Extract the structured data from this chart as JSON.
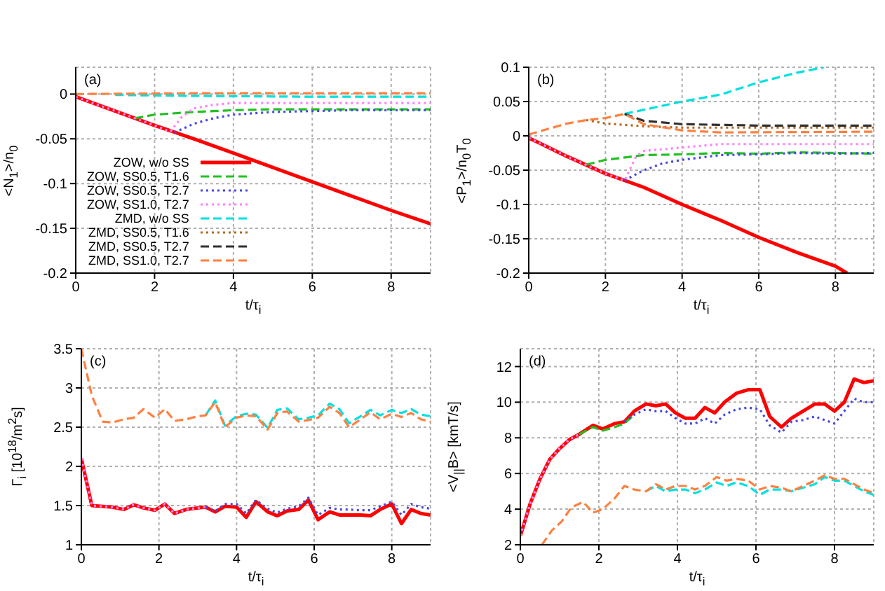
{
  "chart_data": [
    {
      "type": "line",
      "xlabel": "t/τ$_{i}$",
      "ylabel": "<N$_{1}$>/n$_{0}$",
      "xlim": [
        0,
        9
      ],
      "xticks": [
        0,
        2,
        4,
        6,
        8
      ],
      "ylim": [
        -0.2,
        0.03
      ],
      "yticks": [
        0,
        -0.05,
        -0.1,
        -0.15,
        -0.2
      ],
      "grid": true,
      "legend": "bottom left",
      "marker": "none",
      "annotations": [
        "(a)"
      ],
      "series": [
        {
          "name": "ZOW, w/o SS",
          "color": "#ff0000",
          "line_style": "solid",
          "x": [
            0,
            1,
            2,
            3,
            4,
            5,
            6,
            7,
            8,
            9
          ],
          "values": [
            -0.003,
            -0.019,
            -0.035,
            -0.05,
            -0.066,
            -0.082,
            -0.098,
            -0.114,
            -0.13,
            -0.145
          ]
        },
        {
          "name": "ZOW, SS0.5, T1.6",
          "color": "#22c022",
          "line_style": "dashed",
          "x": [
            1.5,
            2,
            3,
            4,
            5,
            6,
            7,
            8,
            9
          ],
          "values": [
            -0.027,
            -0.023,
            -0.02,
            -0.018,
            -0.017,
            -0.017,
            -0.017,
            -0.017,
            -0.017
          ]
        },
        {
          "name": "ZOW, SS0.5, T2.7",
          "color": "#4848e0",
          "line_style": "dotted",
          "x": [
            2.5,
            3,
            3.5,
            4,
            5,
            6,
            7,
            8,
            9
          ],
          "values": [
            -0.043,
            -0.033,
            -0.027,
            -0.023,
            -0.02,
            -0.019,
            -0.018,
            -0.018,
            -0.018
          ]
        },
        {
          "name": "ZOW, SS1.0, T2.7",
          "color": "#ff80ff",
          "line_style": "dotted",
          "x": [
            0,
            1,
            2,
            2.4,
            2.7,
            3,
            3.5,
            4,
            5,
            6,
            7,
            8,
            9
          ],
          "values": [
            -0.003,
            -0.019,
            -0.035,
            -0.042,
            -0.025,
            -0.016,
            -0.012,
            -0.01,
            -0.01,
            -0.01,
            -0.01,
            -0.01,
            -0.01
          ]
        },
        {
          "name": "ZMD, w/o SS",
          "color": "#00e0e0",
          "line_style": "dashed",
          "x": [
            1,
            3,
            6,
            9
          ],
          "values": [
            -0.001,
            -0.002,
            -0.003,
            -0.003
          ]
        },
        {
          "name": "ZMD, SS0.5, T1.6",
          "color": "#b06820",
          "line_style": "dotted"
        },
        {
          "name": "ZMD, SS0.5, T2.7",
          "color": "#303030",
          "line_style": "dashed"
        },
        {
          "name": "ZMD, SS1.0, T2.7",
          "color": "#ff8040",
          "line_style": "dashed",
          "x": [
            0,
            3,
            6,
            9
          ],
          "values": [
            0,
            0.001,
            0.001,
            0.001
          ]
        }
      ]
    },
    {
      "type": "line",
      "xlabel": "t/τ$_{i}$",
      "ylabel": "<P$_{1}$>/n$_{0}$T$_{0}$",
      "xlim": [
        0,
        9
      ],
      "xticks": [
        0,
        2,
        4,
        6,
        8
      ],
      "ylim": [
        -0.2,
        0.1
      ],
      "yticks": [
        -0.2,
        -0.15,
        -0.1,
        -0.05,
        0,
        0.05,
        0.1
      ],
      "grid": true,
      "marker": "none",
      "annotations": [
        "(b)"
      ],
      "series": [
        {
          "color": "#ff0000",
          "line_style": "solid",
          "x": [
            0,
            1,
            2,
            3,
            4,
            5,
            6,
            7,
            8,
            8.3
          ],
          "values": [
            -0.003,
            -0.03,
            -0.055,
            -0.075,
            -0.1,
            -0.123,
            -0.148,
            -0.17,
            -0.19,
            -0.2
          ]
        },
        {
          "color": "#22c022",
          "line_style": "dashed",
          "x": [
            1.5,
            2,
            3,
            4,
            5,
            6,
            7,
            8,
            9
          ],
          "values": [
            -0.042,
            -0.035,
            -0.028,
            -0.027,
            -0.025,
            -0.026,
            -0.024,
            -0.025,
            -0.026
          ]
        },
        {
          "color": "#4848e0",
          "line_style": "dotted",
          "x": [
            2.5,
            3,
            3.5,
            4,
            5,
            6,
            7,
            8,
            9
          ],
          "values": [
            -0.065,
            -0.05,
            -0.04,
            -0.035,
            -0.028,
            -0.027,
            -0.025,
            -0.026,
            -0.025
          ]
        },
        {
          "color": "#ff80ff",
          "line_style": "dotted",
          "x": [
            0,
            1,
            2,
            2.5,
            2.8,
            3,
            4,
            5,
            6,
            7,
            8,
            9
          ],
          "values": [
            -0.003,
            -0.03,
            -0.055,
            -0.065,
            -0.03,
            -0.022,
            -0.017,
            -0.012,
            -0.012,
            -0.012,
            -0.012,
            -0.012
          ]
        },
        {
          "color": "#00e0e0",
          "line_style": "dashed",
          "x": [
            2.5,
            4,
            5,
            6,
            7,
            7.7
          ],
          "values": [
            0.032,
            0.05,
            0.06,
            0.078,
            0.092,
            0.1
          ]
        },
        {
          "color": "#b06820",
          "line_style": "dotted",
          "x": [
            1.5,
            2,
            3,
            4,
            6,
            9
          ],
          "values": [
            0.023,
            0.018,
            0.014,
            0.012,
            0.012,
            0.012
          ]
        },
        {
          "color": "#303030",
          "line_style": "dashed",
          "x": [
            2.5,
            3,
            4,
            6,
            9
          ],
          "values": [
            0.032,
            0.022,
            0.017,
            0.015,
            0.015
          ]
        },
        {
          "color": "#ff8040",
          "line_style": "dashed",
          "x": [
            0,
            1,
            1.5,
            2,
            2.5,
            3,
            4,
            5,
            9
          ],
          "values": [
            0.002,
            0.018,
            0.023,
            0.026,
            0.032,
            0.017,
            0.008,
            0.005,
            0.006
          ]
        }
      ]
    },
    {
      "type": "line",
      "xlabel": "t/τ$_{i}$",
      "ylabel": "Γ$_{i}$ [10$^{18}$/m$^{2}$s]",
      "xlim": [
        0,
        9
      ],
      "xticks": [
        0,
        2,
        4,
        6,
        8
      ],
      "ylim": [
        1,
        3.5
      ],
      "yticks": [
        1,
        1.5,
        2,
        2.5,
        3,
        3.5
      ],
      "grid": true,
      "marker": "none",
      "annotations": [
        "(c)"
      ],
      "series": [
        {
          "color": "#ff0000",
          "line_style": "solid",
          "x": [
            0,
            0.27,
            0.55,
            0.8,
            1.1,
            1.35,
            1.6,
            1.9,
            2.15,
            2.4,
            2.7,
            3.0,
            3.2,
            3.45,
            3.7,
            4.0,
            4.25,
            4.5,
            4.8,
            5.05,
            5.3,
            5.6,
            5.85,
            6.1,
            6.4,
            6.65,
            6.9,
            7.2,
            7.45,
            7.7,
            8.0,
            8.25,
            8.5,
            8.75,
            9
          ],
          "values": [
            2.1,
            1.5,
            1.49,
            1.48,
            1.45,
            1.51,
            1.47,
            1.44,
            1.52,
            1.4,
            1.45,
            1.47,
            1.48,
            1.42,
            1.49,
            1.48,
            1.35,
            1.55,
            1.42,
            1.37,
            1.43,
            1.45,
            1.57,
            1.32,
            1.42,
            1.38,
            1.38,
            1.38,
            1.37,
            1.45,
            1.52,
            1.27,
            1.45,
            1.4,
            1.38
          ]
        },
        {
          "color": "#4848e0",
          "line_style": "dotted",
          "x": [
            3.2,
            3.45,
            3.7,
            4.0,
            4.25,
            4.5,
            4.8,
            5.05,
            5.3,
            5.6,
            5.85,
            6.1,
            6.4,
            6.65,
            6.9,
            7.2,
            7.45,
            7.7,
            8.0,
            8.25,
            8.5,
            8.75,
            9
          ],
          "values": [
            1.48,
            1.43,
            1.52,
            1.52,
            1.4,
            1.57,
            1.46,
            1.41,
            1.46,
            1.49,
            1.6,
            1.38,
            1.47,
            1.45,
            1.45,
            1.44,
            1.44,
            1.49,
            1.55,
            1.38,
            1.52,
            1.48,
            1.46
          ]
        },
        {
          "color": "#ff80ff",
          "line_style": "dotted",
          "x": [
            0,
            0.27,
            0.55,
            0.8,
            1.1,
            1.35,
            1.6,
            1.9,
            2.15,
            2.4,
            2.7,
            3.0,
            3.2
          ],
          "values": [
            2.1,
            1.5,
            1.49,
            1.48,
            1.45,
            1.51,
            1.47,
            1.44,
            1.52,
            1.4,
            1.45,
            1.47,
            1.48
          ]
        },
        {
          "color": "#00e0e0",
          "line_style": "dashed",
          "x": [
            3.2,
            3.45,
            3.7,
            4.0,
            4.25,
            4.5,
            4.8,
            5.05,
            5.3,
            5.6,
            5.85,
            6.1,
            6.4,
            6.65,
            6.9,
            7.2,
            7.45,
            7.7,
            8.0,
            8.25,
            8.5,
            8.75,
            9
          ],
          "values": [
            2.65,
            2.84,
            2.52,
            2.64,
            2.67,
            2.66,
            2.49,
            2.72,
            2.74,
            2.6,
            2.62,
            2.65,
            2.8,
            2.73,
            2.55,
            2.64,
            2.72,
            2.65,
            2.72,
            2.68,
            2.73,
            2.66,
            2.64
          ]
        },
        {
          "color": "#ff8040",
          "line_style": "dashed",
          "x": [
            0,
            0.27,
            0.55,
            0.8,
            1.1,
            1.35,
            1.6,
            1.9,
            2.15,
            2.4,
            2.7,
            3.0,
            3.2,
            3.45,
            3.7,
            4.0,
            4.25,
            4.5,
            4.8,
            5.05,
            5.3,
            5.6,
            5.85,
            6.1,
            6.4,
            6.65,
            6.9,
            7.2,
            7.45,
            7.7,
            8.0,
            8.25,
            8.5,
            8.75,
            9
          ],
          "values": [
            3.5,
            2.9,
            2.57,
            2.56,
            2.6,
            2.62,
            2.73,
            2.62,
            2.73,
            2.58,
            2.6,
            2.64,
            2.65,
            2.82,
            2.5,
            2.62,
            2.65,
            2.64,
            2.47,
            2.68,
            2.7,
            2.57,
            2.59,
            2.62,
            2.76,
            2.68,
            2.5,
            2.6,
            2.69,
            2.6,
            2.67,
            2.63,
            2.68,
            2.6,
            2.57
          ]
        }
      ]
    },
    {
      "type": "line",
      "xlabel": "t/τ$_{i}$",
      "ylabel": "<V$_{||}$B> [kmT/s]",
      "xlim": [
        0,
        9
      ],
      "xticks": [
        0,
        2,
        4,
        6,
        8
      ],
      "ylim": [
        2,
        13
      ],
      "yticks": [
        2,
        4,
        6,
        8,
        10,
        12
      ],
      "grid": true,
      "marker": "none",
      "annotations": [
        "(d)"
      ],
      "series": [
        {
          "color": "#ff0000",
          "line_style": "solid",
          "x": [
            0,
            0.25,
            0.5,
            0.75,
            1.0,
            1.25,
            1.5,
            1.85,
            2.1,
            2.4,
            2.65,
            2.9,
            3.2,
            3.45,
            3.7,
            3.95,
            4.2,
            4.45,
            4.7,
            4.95,
            5.2,
            5.5,
            5.8,
            6.1,
            6.35,
            6.65,
            6.9,
            7.2,
            7.5,
            7.75,
            8.0,
            8.25,
            8.5,
            8.75,
            9
          ],
          "values": [
            2.5,
            4.3,
            5.7,
            6.8,
            7.4,
            7.9,
            8.2,
            8.7,
            8.5,
            8.8,
            8.9,
            9.5,
            9.9,
            9.8,
            9.9,
            9.4,
            9.1,
            9.1,
            9.7,
            9.4,
            10.0,
            10.5,
            10.7,
            10.7,
            9.2,
            8.6,
            9.1,
            9.5,
            9.9,
            9.9,
            9.5,
            10.0,
            11.3,
            11.1,
            11.2
          ]
        },
        {
          "color": "#22c022",
          "line_style": "dashed",
          "x": [
            1.5,
            1.85,
            2.1,
            2.4,
            2.65,
            2.9
          ],
          "values": [
            8.2,
            8.6,
            8.4,
            8.6,
            8.8,
            9.3
          ]
        },
        {
          "color": "#4848e0",
          "line_style": "dotted",
          "x": [
            2.65,
            2.9,
            3.2,
            3.45,
            3.7,
            3.95,
            4.2,
            4.45,
            4.7,
            4.95,
            5.2,
            5.5,
            5.8,
            6.1,
            6.35,
            6.65,
            6.9,
            7.2,
            7.5,
            7.75,
            8.0,
            8.25,
            8.5,
            8.75,
            9
          ],
          "values": [
            8.9,
            9.3,
            9.6,
            9.5,
            9.5,
            9.1,
            8.8,
            8.8,
            9.1,
            8.8,
            9.3,
            9.6,
            9.7,
            9.6,
            8.7,
            8.3,
            8.9,
            9.0,
            9.2,
            9.0,
            8.8,
            9.5,
            10.2,
            10.0,
            10.0
          ]
        },
        {
          "color": "#ff80ff",
          "line_style": "dotted",
          "x": [
            0,
            0.25,
            0.5,
            0.75,
            1.0,
            1.25,
            1.5
          ],
          "values": [
            2.5,
            4.3,
            5.7,
            6.8,
            7.4,
            7.9,
            8.2
          ]
        },
        {
          "color": "#00e0e0",
          "line_style": "dashed",
          "x": [
            3.2,
            3.45,
            3.7,
            3.95,
            4.2,
            4.45,
            4.7,
            5.0,
            5.25,
            5.5,
            5.8,
            6.1,
            6.35,
            6.65,
            6.9,
            7.2,
            7.5,
            7.75,
            8.0,
            8.25,
            8.5,
            8.75,
            9
          ],
          "values": [
            5.0,
            5.3,
            5.0,
            5.1,
            5.1,
            4.9,
            5.1,
            5.5,
            5.3,
            5.5,
            5.3,
            4.8,
            5.1,
            5.1,
            5.0,
            5.2,
            5.4,
            5.8,
            5.6,
            5.6,
            5.3,
            5.0,
            4.8
          ]
        },
        {
          "color": "#ff8040",
          "line_style": "dashed",
          "x": [
            0.55,
            0.8,
            1.05,
            1.3,
            1.6,
            1.85,
            2.1,
            2.4,
            2.65,
            2.9,
            3.2,
            3.45,
            3.7,
            3.95,
            4.2,
            4.45,
            4.7,
            5.0,
            5.25,
            5.5,
            5.8,
            6.1,
            6.35,
            6.65,
            6.9,
            7.2,
            7.5,
            7.75,
            8.0,
            8.25,
            8.5,
            8.75,
            9
          ],
          "values": [
            2.0,
            2.8,
            3.3,
            4.1,
            4.4,
            3.8,
            4.0,
            4.6,
            5.3,
            5.1,
            5.0,
            5.4,
            5.1,
            5.3,
            5.3,
            5.1,
            5.3,
            5.8,
            5.6,
            5.7,
            5.6,
            5.1,
            5.3,
            5.2,
            5.0,
            5.3,
            5.6,
            5.9,
            5.7,
            5.7,
            5.4,
            5.1,
            4.9
          ]
        }
      ]
    }
  ]
}
